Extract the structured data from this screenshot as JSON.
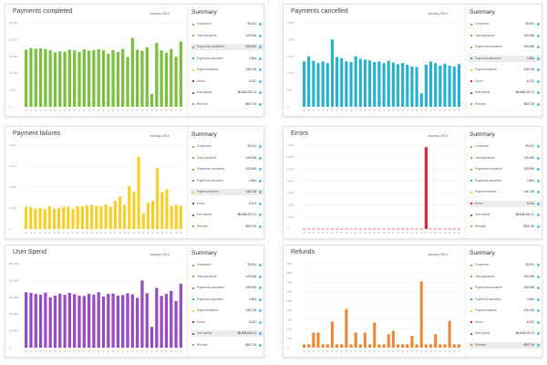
{
  "colors": {
    "green": "#7cc142",
    "cyan": "#29b3d0",
    "yellow": "#f7d02a",
    "red": "#e2243c",
    "purple": "#9b4ec4",
    "orange": "#ee8a3c",
    "indicator": "#5bc0de"
  },
  "summary_rows": [
    {
      "label": "Customers",
      "value": "95,011",
      "color": "#7cc142"
    },
    {
      "label": "Total payments",
      "value": "125,166",
      "color": "#7cc142"
    },
    {
      "label": "Payments completed",
      "value": "105,069",
      "color": "#7cc142"
    },
    {
      "label": "Payments cancelled",
      "value": "1,864",
      "color": "#29b3d0"
    },
    {
      "label": "Payment failures",
      "value": "146,748",
      "color": "#f7d02a"
    },
    {
      "label": "Errors",
      "value": "8,122",
      "color": "#e2243c"
    },
    {
      "label": "User spend",
      "value": "$6,848,241.21",
      "color": "#9b4ec4"
    },
    {
      "label": "Refunds",
      "value": "$537.35",
      "color": "#ee8a3c"
    }
  ],
  "panels": [
    {
      "title": "Payments completed",
      "date": "January 2014",
      "summary_title": "Summary",
      "active_row": 2,
      "chart_data": {
        "type": "bar",
        "color": "#7cc142",
        "ylim": [
          0,
          25000
        ],
        "yticks": [
          "0",
          "5,000",
          "10,000",
          "15,000",
          "20,000",
          "25,000"
        ],
        "values": [
          17000,
          17500,
          17300,
          17400,
          17200,
          16800,
          16200,
          16500,
          16400,
          17000,
          16800,
          16300,
          17100,
          16700,
          16900,
          17200,
          16800,
          15800,
          16900,
          16300,
          17200,
          14800,
          20500,
          17000,
          16700,
          17700,
          3800,
          19000,
          16800,
          16100,
          17200,
          14900,
          19400
        ]
      }
    },
    {
      "title": "Payments cancelled",
      "date": "January 2014",
      "summary_title": "Summary",
      "active_row": 3,
      "chart_data": {
        "type": "bar",
        "color": "#29b3d0",
        "ylim": [
          0,
          2500
        ],
        "yticks": [
          "0",
          "500",
          "1,000",
          "1,500",
          "2,000",
          "2,500"
        ],
        "values": [
          1350,
          1500,
          1370,
          1300,
          1350,
          1300,
          2000,
          1480,
          1450,
          1350,
          1330,
          1500,
          1430,
          1400,
          1380,
          1330,
          1350,
          1300,
          1370,
          1320,
          1270,
          1300,
          1250,
          1200,
          1180,
          400,
          1250,
          1350,
          1300,
          1220,
          1280,
          1220,
          1200,
          1270
        ]
      }
    },
    {
      "title": "Payment failures",
      "date": "January 2014",
      "summary_title": "Summary",
      "active_row": 4,
      "chart_data": {
        "type": "bar",
        "color": "#f7d02a",
        "ylim": [
          0,
          8000
        ],
        "yticks": [
          "0",
          "2,000",
          "4,000",
          "6,000",
          "8,000"
        ],
        "values": [
          2150,
          2100,
          1950,
          2000,
          1900,
          2150,
          1950,
          2000,
          2100,
          2150,
          1900,
          2200,
          2150,
          2250,
          2300,
          2200,
          2150,
          2350,
          2150,
          2700,
          3100,
          2300,
          4100,
          3550,
          6900,
          1500,
          2500,
          2700,
          5800,
          3500,
          3800,
          2200,
          2300,
          2200
        ]
      }
    },
    {
      "title": "Errors",
      "date": "January 2014",
      "summary_title": "Summary",
      "active_row": 5,
      "chart_data": {
        "type": "bar",
        "color": "#e2243c",
        "ylim": [
          0,
          8000
        ],
        "yticks": [
          "0",
          "1,000",
          "2,000",
          "3,000",
          "4,000",
          "5,000",
          "6,000",
          "7,000"
        ],
        "values": [
          30,
          30,
          30,
          30,
          30,
          30,
          30,
          30,
          30,
          30,
          30,
          30,
          30,
          30,
          30,
          30,
          30,
          30,
          30,
          30,
          30,
          30,
          30,
          30,
          30,
          30,
          7800,
          30,
          30,
          30,
          30,
          30,
          30,
          30
        ]
      }
    },
    {
      "title": "User Spend",
      "date": "January 2014",
      "summary_title": "Summary",
      "active_row": 6,
      "chart_data": {
        "type": "bar",
        "color": "#9b4ec4",
        "ylim": [
          0,
          250000
        ],
        "yticks": [
          "0",
          "50,000",
          "100,000",
          "150,000",
          "200,000",
          "250,000"
        ],
        "values": [
          165000,
          163000,
          160000,
          158000,
          164000,
          150000,
          155000,
          161000,
          157000,
          163000,
          159000,
          155000,
          154000,
          160000,
          158000,
          165000,
          152000,
          160000,
          161000,
          155000,
          157000,
          162000,
          159000,
          148000,
          200000,
          162000,
          62000,
          178000,
          154000,
          160000,
          169000,
          139000,
          190000
        ]
      }
    },
    {
      "title": "Refunds",
      "date": "January 2014",
      "summary_title": "Summary",
      "active_row": 7,
      "chart_data": {
        "type": "bar",
        "color": "#ee8a3c",
        "ylim": [
          0,
          1000
        ],
        "yticks": [
          "0",
          "100",
          "200",
          "300",
          "400",
          "500",
          "600",
          "700",
          "800",
          "900"
        ],
        "values": [
          40,
          40,
          180,
          180,
          40,
          40,
          310,
          40,
          40,
          460,
          40,
          180,
          40,
          180,
          40,
          300,
          40,
          40,
          160,
          200,
          40,
          40,
          40,
          140,
          40,
          790,
          40,
          40,
          160,
          40,
          40,
          320,
          40,
          40
        ]
      }
    }
  ]
}
